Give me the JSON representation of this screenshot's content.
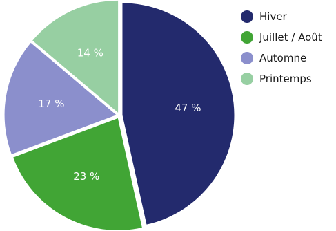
{
  "chart_data": {
    "type": "pie",
    "title": "",
    "slices": [
      {
        "label": "Hiver",
        "value": 47,
        "display": "47 %",
        "color": "#232a6d"
      },
      {
        "label": "Juillet / Août",
        "value": 23,
        "display": "23 %",
        "color": "#41a535"
      },
      {
        "label": "Automne",
        "value": 17,
        "display": "17 %",
        "color": "#8b8fcc"
      },
      {
        "label": "Printemps",
        "value": 14,
        "display": "14 %",
        "color": "#97cfa2"
      }
    ],
    "legend_position": "top-right"
  }
}
